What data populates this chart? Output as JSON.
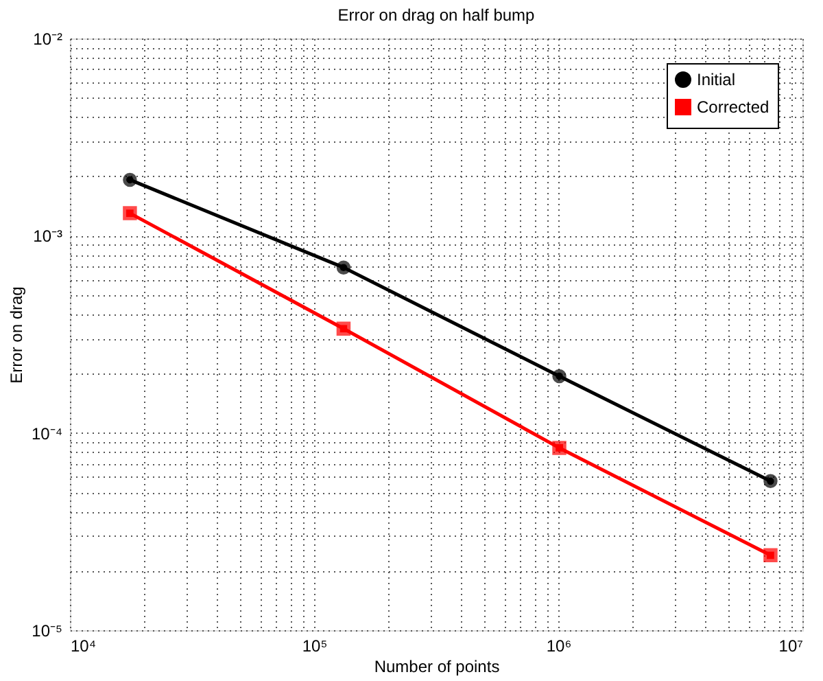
{
  "chart_data": {
    "type": "line",
    "title": "Error on drag on half bump",
    "xlabel": "Number of points",
    "ylabel": "Error on drag",
    "log": "xy",
    "grid": true,
    "legend": "top right",
    "line_style": "solid",
    "xlim": [
      10000,
      10000000
    ],
    "ylim": [
      1e-05,
      0.01
    ],
    "xticks": [
      {
        "value": 10000,
        "label": "10⁴"
      },
      {
        "value": 20000,
        "label": null
      },
      {
        "value": 30000,
        "label": null
      },
      {
        "value": 40000,
        "label": null
      },
      {
        "value": 50000,
        "label": null
      },
      {
        "value": 60000,
        "label": null
      },
      {
        "value": 70000,
        "label": null
      },
      {
        "value": 80000,
        "label": null
      },
      {
        "value": 90000,
        "label": null
      },
      {
        "value": 100000,
        "label": "10⁵"
      },
      {
        "value": 200000,
        "label": null
      },
      {
        "value": 300000,
        "label": null
      },
      {
        "value": 400000,
        "label": null
      },
      {
        "value": 500000,
        "label": null
      },
      {
        "value": 600000,
        "label": null
      },
      {
        "value": 700000,
        "label": null
      },
      {
        "value": 800000,
        "label": null
      },
      {
        "value": 900000,
        "label": null
      },
      {
        "value": 1000000,
        "label": "10⁶"
      },
      {
        "value": 2000000,
        "label": null
      },
      {
        "value": 3000000,
        "label": null
      },
      {
        "value": 4000000,
        "label": null
      },
      {
        "value": 5000000,
        "label": null
      },
      {
        "value": 6000000,
        "label": null
      },
      {
        "value": 7000000,
        "label": null
      },
      {
        "value": 8000000,
        "label": null
      },
      {
        "value": 9000000,
        "label": null
      },
      {
        "value": 10000000,
        "label": "10⁷"
      }
    ],
    "yticks": [
      {
        "value": 1e-05,
        "label": "10⁻⁵"
      },
      {
        "value": 2e-05,
        "label": null
      },
      {
        "value": 3e-05,
        "label": null
      },
      {
        "value": 4e-05,
        "label": null
      },
      {
        "value": 5e-05,
        "label": null
      },
      {
        "value": 6e-05,
        "label": null
      },
      {
        "value": 7e-05,
        "label": null
      },
      {
        "value": 8e-05,
        "label": null
      },
      {
        "value": 9e-05,
        "label": null
      },
      {
        "value": 0.0001,
        "label": "10⁻⁴"
      },
      {
        "value": 0.0002,
        "label": null
      },
      {
        "value": 0.0003,
        "label": null
      },
      {
        "value": 0.0004,
        "label": null
      },
      {
        "value": 0.0005,
        "label": null
      },
      {
        "value": 0.0006,
        "label": null
      },
      {
        "value": 0.0007,
        "label": null
      },
      {
        "value": 0.0008,
        "label": null
      },
      {
        "value": 0.0009,
        "label": null
      },
      {
        "value": 0.001,
        "label": "10⁻³"
      },
      {
        "value": 0.002,
        "label": null
      },
      {
        "value": 0.003,
        "label": null
      },
      {
        "value": 0.004,
        "label": null
      },
      {
        "value": 0.005,
        "label": null
      },
      {
        "value": 0.006,
        "label": null
      },
      {
        "value": 0.007,
        "label": null
      },
      {
        "value": 0.008,
        "label": null
      },
      {
        "value": 0.009,
        "label": null
      },
      {
        "value": 0.01,
        "label": "10⁻²"
      }
    ],
    "x": [
      17600,
      132000,
      1010000,
      7400000
    ],
    "series": [
      {
        "name": "Initial",
        "color": "#000000",
        "marker": "circle",
        "values": [
          0.00192,
          0.00069,
          0.000194,
          5.7e-05
        ]
      },
      {
        "name": "Corrected",
        "color": "#ff0000",
        "marker": "square",
        "values": [
          0.0013,
          0.000338,
          8.4e-05,
          2.4e-05
        ]
      }
    ]
  }
}
